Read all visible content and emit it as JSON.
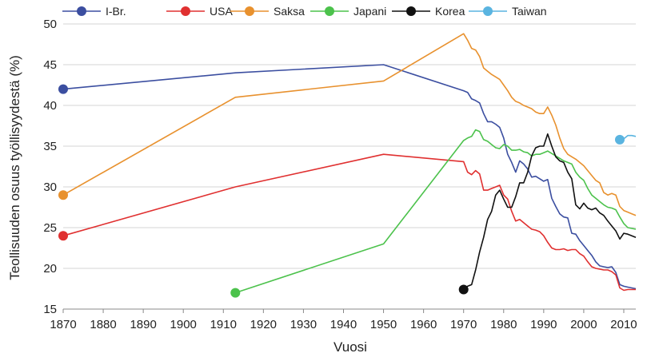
{
  "chart_data": {
    "type": "line",
    "title": "",
    "xlabel": "Vuosi",
    "ylabel": "Teollisuuden osuus työllisyydestä (%)",
    "xlim": [
      1870,
      2013
    ],
    "ylim": [
      15,
      50
    ],
    "xticks": [
      1870,
      1880,
      1890,
      1900,
      1910,
      1920,
      1930,
      1940,
      1950,
      1960,
      1970,
      1980,
      1990,
      2000,
      2010
    ],
    "yticks": [
      15,
      20,
      25,
      30,
      35,
      40,
      45,
      50
    ],
    "grid": "horizontal",
    "legend": "top",
    "series": [
      {
        "name": "I-Br.",
        "color": "#3b4ea0",
        "points": [
          [
            1870,
            42
          ],
          [
            1913,
            44
          ],
          [
            1950,
            45
          ],
          [
            1970,
            41.8
          ],
          [
            1971,
            41.6
          ],
          [
            1972,
            40.8
          ],
          [
            1973,
            40.6
          ],
          [
            1974,
            40.3
          ],
          [
            1975,
            39
          ],
          [
            1976,
            38
          ],
          [
            1977,
            38
          ],
          [
            1978,
            37.7
          ],
          [
            1979,
            37.3
          ],
          [
            1980,
            36
          ],
          [
            1981,
            34
          ],
          [
            1982,
            33
          ],
          [
            1983,
            31.8
          ],
          [
            1984,
            33.2
          ],
          [
            1985,
            32.8
          ],
          [
            1986,
            32.2
          ],
          [
            1987,
            31.2
          ],
          [
            1988,
            31.3
          ],
          [
            1989,
            31
          ],
          [
            1990,
            30.7
          ],
          [
            1991,
            30.9
          ],
          [
            1992,
            28.6
          ],
          [
            1993,
            27.6
          ],
          [
            1994,
            26.7
          ],
          [
            1995,
            26.3
          ],
          [
            1996,
            26.2
          ],
          [
            1997,
            24.3
          ],
          [
            1998,
            24.2
          ],
          [
            1999,
            23.4
          ],
          [
            2000,
            22.8
          ],
          [
            2001,
            22.2
          ],
          [
            2002,
            21.6
          ],
          [
            2003,
            20.8
          ],
          [
            2004,
            20.3
          ],
          [
            2005,
            20.2
          ],
          [
            2006,
            20.1
          ],
          [
            2007,
            20.2
          ],
          [
            2008,
            19.5
          ],
          [
            2009,
            18
          ],
          [
            2010,
            17.8
          ],
          [
            2011,
            17.7
          ],
          [
            2012,
            17.6
          ],
          [
            2013,
            17.5
          ]
        ],
        "marker": [
          1870,
          42
        ]
      },
      {
        "name": "USA",
        "color": "#e03030",
        "points": [
          [
            1870,
            24
          ],
          [
            1913,
            30
          ],
          [
            1950,
            34
          ],
          [
            1970,
            33.1
          ],
          [
            1971,
            31.8
          ],
          [
            1972,
            31.5
          ],
          [
            1973,
            32
          ],
          [
            1974,
            31.6
          ],
          [
            1975,
            29.6
          ],
          [
            1976,
            29.6
          ],
          [
            1977,
            29.8
          ],
          [
            1978,
            30
          ],
          [
            1979,
            30.2
          ],
          [
            1980,
            29
          ],
          [
            1981,
            28.5
          ],
          [
            1982,
            27
          ],
          [
            1983,
            25.8
          ],
          [
            1984,
            26
          ],
          [
            1985,
            25.6
          ],
          [
            1986,
            25.2
          ],
          [
            1987,
            24.8
          ],
          [
            1988,
            24.7
          ],
          [
            1989,
            24.5
          ],
          [
            1990,
            24
          ],
          [
            1991,
            23.2
          ],
          [
            1992,
            22.5
          ],
          [
            1993,
            22.3
          ],
          [
            1994,
            22.3
          ],
          [
            1995,
            22.4
          ],
          [
            1996,
            22.2
          ],
          [
            1997,
            22.3
          ],
          [
            1998,
            22.3
          ],
          [
            1999,
            21.8
          ],
          [
            2000,
            21.5
          ],
          [
            2001,
            20.8
          ],
          [
            2002,
            20.2
          ],
          [
            2003,
            20
          ],
          [
            2004,
            19.9
          ],
          [
            2005,
            19.8
          ],
          [
            2006,
            19.8
          ],
          [
            2007,
            19.6
          ],
          [
            2008,
            19.2
          ],
          [
            2009,
            17.6
          ],
          [
            2010,
            17.3
          ],
          [
            2011,
            17.4
          ],
          [
            2012,
            17.4
          ],
          [
            2013,
            17.4
          ]
        ],
        "marker": [
          1870,
          24
        ]
      },
      {
        "name": "Saksa",
        "color": "#e8912e",
        "points": [
          [
            1870,
            29
          ],
          [
            1913,
            41
          ],
          [
            1950,
            43
          ],
          [
            1970,
            48.8
          ],
          [
            1971,
            48
          ],
          [
            1972,
            47
          ],
          [
            1973,
            46.8
          ],
          [
            1974,
            46
          ],
          [
            1975,
            44.6
          ],
          [
            1976,
            44.2
          ],
          [
            1977,
            43.8
          ],
          [
            1978,
            43.5
          ],
          [
            1979,
            43.2
          ],
          [
            1980,
            42.5
          ],
          [
            1981,
            41.8
          ],
          [
            1982,
            41
          ],
          [
            1983,
            40.5
          ],
          [
            1984,
            40.3
          ],
          [
            1985,
            40
          ],
          [
            1986,
            39.8
          ],
          [
            1987,
            39.6
          ],
          [
            1988,
            39.2
          ],
          [
            1989,
            39
          ],
          [
            1990,
            39
          ],
          [
            1991,
            39.8
          ],
          [
            1992,
            38.8
          ],
          [
            1993,
            37.6
          ],
          [
            1994,
            36
          ],
          [
            1995,
            34.7
          ],
          [
            1996,
            34
          ],
          [
            1997,
            33.7
          ],
          [
            1998,
            33.4
          ],
          [
            1999,
            33
          ],
          [
            2000,
            32.6
          ],
          [
            2001,
            32
          ],
          [
            2002,
            31.4
          ],
          [
            2003,
            30.8
          ],
          [
            2004,
            30.5
          ],
          [
            2005,
            29.3
          ],
          [
            2006,
            29
          ],
          [
            2007,
            29.2
          ],
          [
            2008,
            29
          ],
          [
            2009,
            27.6
          ],
          [
            2010,
            27.1
          ],
          [
            2011,
            26.9
          ],
          [
            2012,
            26.7
          ],
          [
            2013,
            26.5
          ]
        ],
        "marker": [
          1870,
          29
        ]
      },
      {
        "name": "Japani",
        "color": "#4cc24c",
        "points": [
          [
            1913,
            17
          ],
          [
            1950,
            23
          ],
          [
            1970,
            35.7
          ],
          [
            1971,
            36
          ],
          [
            1972,
            36.2
          ],
          [
            1973,
            37
          ],
          [
            1974,
            36.8
          ],
          [
            1975,
            35.8
          ],
          [
            1976,
            35.6
          ],
          [
            1977,
            35.2
          ],
          [
            1978,
            34.8
          ],
          [
            1979,
            34.7
          ],
          [
            1980,
            35.2
          ],
          [
            1981,
            35
          ],
          [
            1982,
            34.5
          ],
          [
            1983,
            34.5
          ],
          [
            1984,
            34.6
          ],
          [
            1985,
            34.3
          ],
          [
            1986,
            34.2
          ],
          [
            1987,
            33.8
          ],
          [
            1988,
            34
          ],
          [
            1989,
            34
          ],
          [
            1990,
            34.2
          ],
          [
            1991,
            34.4
          ],
          [
            1992,
            34.1
          ],
          [
            1993,
            33.8
          ],
          [
            1994,
            33.5
          ],
          [
            1995,
            33.2
          ],
          [
            1996,
            33
          ],
          [
            1997,
            32.8
          ],
          [
            1998,
            31.8
          ],
          [
            1999,
            31.2
          ],
          [
            2000,
            30.8
          ],
          [
            2001,
            29.8
          ],
          [
            2002,
            29
          ],
          [
            2003,
            28.6
          ],
          [
            2004,
            28.2
          ],
          [
            2005,
            27.8
          ],
          [
            2006,
            27.5
          ],
          [
            2007,
            27.4
          ],
          [
            2008,
            27.2
          ],
          [
            2009,
            26.3
          ],
          [
            2010,
            25.5
          ],
          [
            2011,
            25
          ],
          [
            2012,
            24.9
          ],
          [
            2013,
            24.8
          ]
        ],
        "marker": [
          1913,
          17
        ]
      },
      {
        "name": "Korea",
        "color": "#111111",
        "points": [
          [
            1970,
            17.4
          ],
          [
            1971,
            17.8
          ],
          [
            1972,
            18
          ],
          [
            1973,
            19.8
          ],
          [
            1974,
            22
          ],
          [
            1975,
            23.8
          ],
          [
            1976,
            26
          ],
          [
            1977,
            27
          ],
          [
            1978,
            29
          ],
          [
            1979,
            29.6
          ],
          [
            1980,
            28.5
          ],
          [
            1981,
            27.5
          ],
          [
            1982,
            27.5
          ],
          [
            1983,
            28.8
          ],
          [
            1984,
            30.5
          ],
          [
            1985,
            30.5
          ],
          [
            1986,
            31.8
          ],
          [
            1987,
            33.8
          ],
          [
            1988,
            34.8
          ],
          [
            1989,
            35
          ],
          [
            1990,
            35
          ],
          [
            1991,
            36.5
          ],
          [
            1992,
            35
          ],
          [
            1993,
            33.7
          ],
          [
            1994,
            33.2
          ],
          [
            1995,
            33
          ],
          [
            1996,
            31.8
          ],
          [
            1997,
            31
          ],
          [
            1998,
            27.8
          ],
          [
            1999,
            27.3
          ],
          [
            2000,
            28
          ],
          [
            2001,
            27.4
          ],
          [
            2002,
            27.2
          ],
          [
            2003,
            27.4
          ],
          [
            2004,
            26.8
          ],
          [
            2005,
            26.5
          ],
          [
            2006,
            25.8
          ],
          [
            2007,
            25.2
          ],
          [
            2008,
            24.6
          ],
          [
            2009,
            23.6
          ],
          [
            2010,
            24.3
          ],
          [
            2011,
            24.2
          ],
          [
            2012,
            24
          ],
          [
            2013,
            23.8
          ]
        ],
        "marker": [
          1970,
          17.4
        ]
      },
      {
        "name": "Taiwan",
        "color": "#5ab4e0",
        "points": [
          [
            2009,
            35.8
          ],
          [
            2010,
            35.9
          ],
          [
            2011,
            36.3
          ],
          [
            2012,
            36.3
          ],
          [
            2013,
            36.2
          ]
        ],
        "marker": [
          2009,
          35.8
        ]
      }
    ]
  }
}
